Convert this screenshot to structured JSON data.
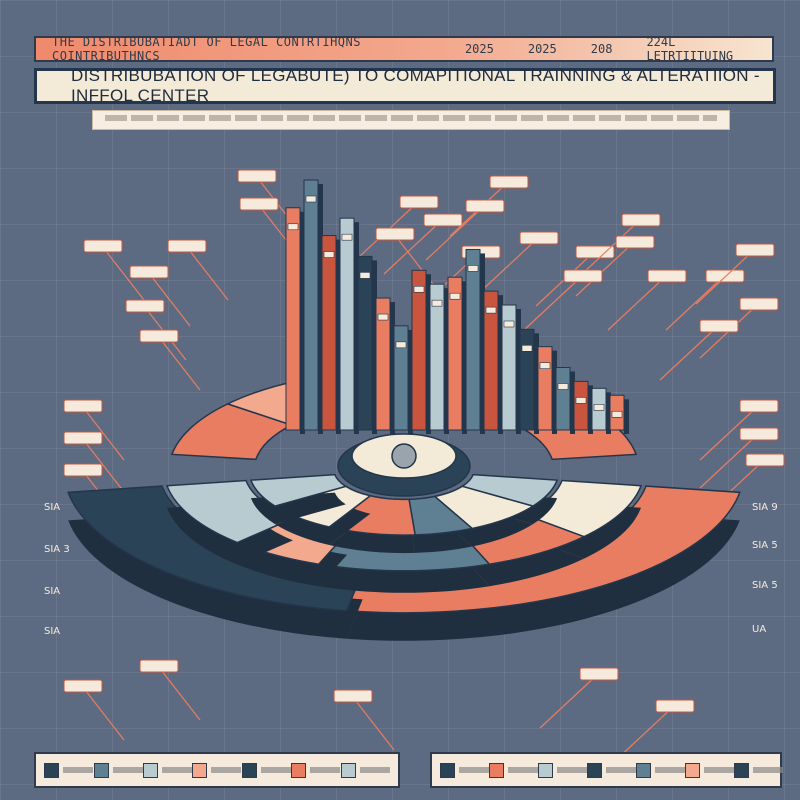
{
  "header": {
    "banner_text": "THE DISTRIBUBATIADT OF LEGAL CONTRTIHQNS COINTRIBUTHNCS",
    "banner_years": [
      "2025",
      "2025",
      "208",
      "224L LETRTIITUING"
    ],
    "title": "DISTRIBUBATION OF LEGABUTE) TO COMAPITIONAL TRAINNING & ALTERATIION - INFFOL CENTER"
  },
  "right_labels": [
    "SIA 9",
    "SIA 5",
    "SIA 5",
    "UA"
  ],
  "left_labels": [
    "SIA",
    "SIA 3",
    "SIA",
    "SIA"
  ],
  "colors": {
    "background": "#5d6b82",
    "coral": "#e97d61",
    "light_coral": "#f2a98d",
    "navy": "#2b4357",
    "slate": "#5f7f93",
    "cream": "#f4ead8",
    "light_blue": "#b8cbd0",
    "brick": "#c9553f"
  },
  "chart_data": {
    "type": "bar",
    "title": "DISTRIBUBATION OF LEGABUTE) TO COMAPITIONAL TRAINNING & ALTERATIION - INFFOL CENTER",
    "tower_values": [
      64,
      72,
      56,
      61,
      50,
      38,
      30,
      46,
      42,
      44,
      52,
      40,
      36,
      29,
      24,
      18,
      14,
      12,
      10
    ],
    "ring_segments": {
      "outer": [
        28,
        22
      ],
      "middle": [
        14,
        12,
        18,
        10,
        16
      ],
      "inner": [
        9,
        11,
        8,
        12,
        10,
        9
      ]
    },
    "legend_left": [
      {
        "color": "#2b4357"
      },
      {
        "color": "#5f7f93"
      },
      {
        "color": "#b8cbd0"
      },
      {
        "color": "#f2a98d"
      },
      {
        "color": "#2b4357"
      },
      {
        "color": "#e97d61"
      },
      {
        "color": "#b8cbd0"
      }
    ],
    "legend_right": [
      {
        "color": "#2b4357"
      },
      {
        "color": "#e97d61"
      },
      {
        "color": "#b8cbd0"
      },
      {
        "color": "#2b4357"
      },
      {
        "color": "#5f7f93"
      },
      {
        "color": "#f2a98d"
      },
      {
        "color": "#2b4357"
      }
    ]
  }
}
